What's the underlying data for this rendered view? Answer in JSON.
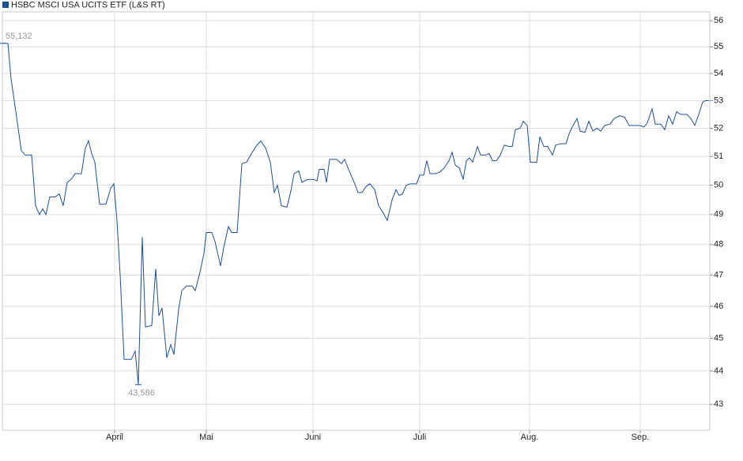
{
  "chart_data": {
    "type": "line",
    "log": true,
    "grid": true,
    "legend": "top-left",
    "xlim": [
      0,
      895
    ],
    "xticks": [
      {
        "value": 142,
        "label": "April"
      },
      {
        "value": 258,
        "label": "Mai"
      },
      {
        "value": 393,
        "label": "Juni"
      },
      {
        "value": 528,
        "label": "Juli"
      },
      {
        "value": 667,
        "label": "Aug."
      },
      {
        "value": 807,
        "label": "Sep."
      }
    ],
    "ylim": [
      42.24,
      56.34
    ],
    "yticks": [
      43,
      44,
      45,
      46,
      47,
      48,
      49,
      50,
      51,
      52,
      53,
      54,
      55,
      56
    ],
    "annotations": [
      {
        "label": "55,132",
        "x": 0,
        "y": 55.132
      },
      {
        "label": "43,586",
        "x": 172,
        "y": 43.586
      }
    ],
    "series": [
      {
        "name": "HSBC MSCI USA UCITS ETF (L&S RT)",
        "color": "#1c4f9c",
        "x": [
          0,
          7,
          11,
          17,
          24,
          29,
          37,
          42,
          47,
          51,
          55,
          60,
          67,
          72,
          77,
          82,
          87,
          92,
          100,
          105,
          109,
          113,
          117,
          123,
          131,
          137,
          141,
          145,
          149,
          154,
          163,
          168,
          172,
          177,
          181,
          189,
          194,
          198,
          202,
          208,
          213,
          217,
          223,
          227,
          233,
          240,
          244,
          250,
          255,
          258,
          265,
          269,
          276,
          280,
          286,
          290,
          297,
          303,
          309,
          315,
          322,
          327,
          333,
          339,
          344,
          348,
          353,
          360,
          365,
          369,
          375,
          379,
          386,
          394,
          398,
          401,
          407,
          410,
          414,
          423,
          429,
          433,
          438,
          445,
          450,
          455,
          460,
          465,
          471,
          476,
          482,
          487,
          493,
          498,
          502,
          506,
          511,
          516,
          524,
          528,
          533,
          537,
          541,
          548,
          553,
          559,
          565,
          569,
          573,
          578,
          583,
          587,
          591,
          595,
          601,
          605,
          611,
          616,
          620,
          625,
          630,
          635,
          641,
          645,
          649,
          655,
          659,
          664,
          668,
          676,
          680,
          685,
          690,
          696,
          700,
          706,
          713,
          717,
          721,
          727,
          731,
          737,
          742,
          747,
          752,
          757,
          762,
          769,
          774,
          781,
          787,
          793,
          800,
          806,
          812,
          816,
          822,
          826,
          833,
          838,
          843,
          848,
          853,
          858,
          866,
          871,
          876,
          881,
          886,
          890,
          894
        ],
        "values": [
          55.13,
          55.13,
          53.8,
          52.6,
          51.2,
          51.05,
          51.05,
          49.3,
          49.0,
          49.2,
          49.0,
          49.6,
          49.6,
          49.7,
          49.3,
          50.1,
          50.2,
          50.4,
          50.4,
          51.3,
          51.55,
          51.1,
          50.8,
          49.35,
          49.35,
          49.9,
          50.05,
          48.8,
          47.0,
          44.35,
          44.35,
          44.6,
          43.59,
          48.25,
          45.35,
          45.4,
          47.2,
          45.7,
          45.95,
          44.4,
          44.8,
          44.5,
          45.9,
          46.5,
          46.65,
          46.65,
          46.5,
          47.1,
          47.7,
          48.4,
          48.4,
          48.1,
          47.3,
          47.9,
          48.6,
          48.4,
          48.4,
          50.75,
          50.8,
          51.1,
          51.4,
          51.55,
          51.3,
          50.8,
          49.75,
          50.0,
          49.3,
          49.25,
          49.8,
          50.4,
          50.5,
          50.1,
          50.2,
          50.2,
          50.15,
          50.55,
          50.55,
          50.1,
          50.9,
          50.9,
          50.75,
          50.9,
          50.55,
          50.1,
          49.75,
          49.75,
          49.95,
          50.05,
          49.85,
          49.3,
          49.05,
          48.8,
          49.5,
          49.85,
          49.65,
          49.7,
          50.0,
          50.05,
          50.05,
          50.35,
          50.35,
          50.85,
          50.4,
          50.4,
          50.45,
          50.6,
          50.85,
          51.15,
          50.7,
          50.6,
          50.2,
          50.85,
          50.95,
          50.8,
          51.35,
          51.05,
          51.05,
          51.1,
          50.85,
          50.85,
          51.05,
          51.4,
          51.35,
          51.35,
          51.95,
          52.0,
          52.25,
          52.1,
          50.8,
          50.8,
          51.7,
          51.35,
          51.35,
          51.05,
          51.4,
          51.45,
          51.45,
          51.8,
          52.05,
          52.35,
          51.9,
          51.85,
          52.25,
          51.9,
          52.0,
          51.9,
          52.1,
          52.15,
          52.35,
          52.45,
          52.4,
          52.1,
          52.1,
          52.1,
          52.05,
          52.2,
          52.7,
          52.15,
          52.15,
          51.95,
          52.45,
          52.15,
          52.6,
          52.5,
          52.5,
          52.35,
          52.1,
          52.5,
          52.95,
          53.0,
          53.0
        ]
      }
    ]
  }
}
